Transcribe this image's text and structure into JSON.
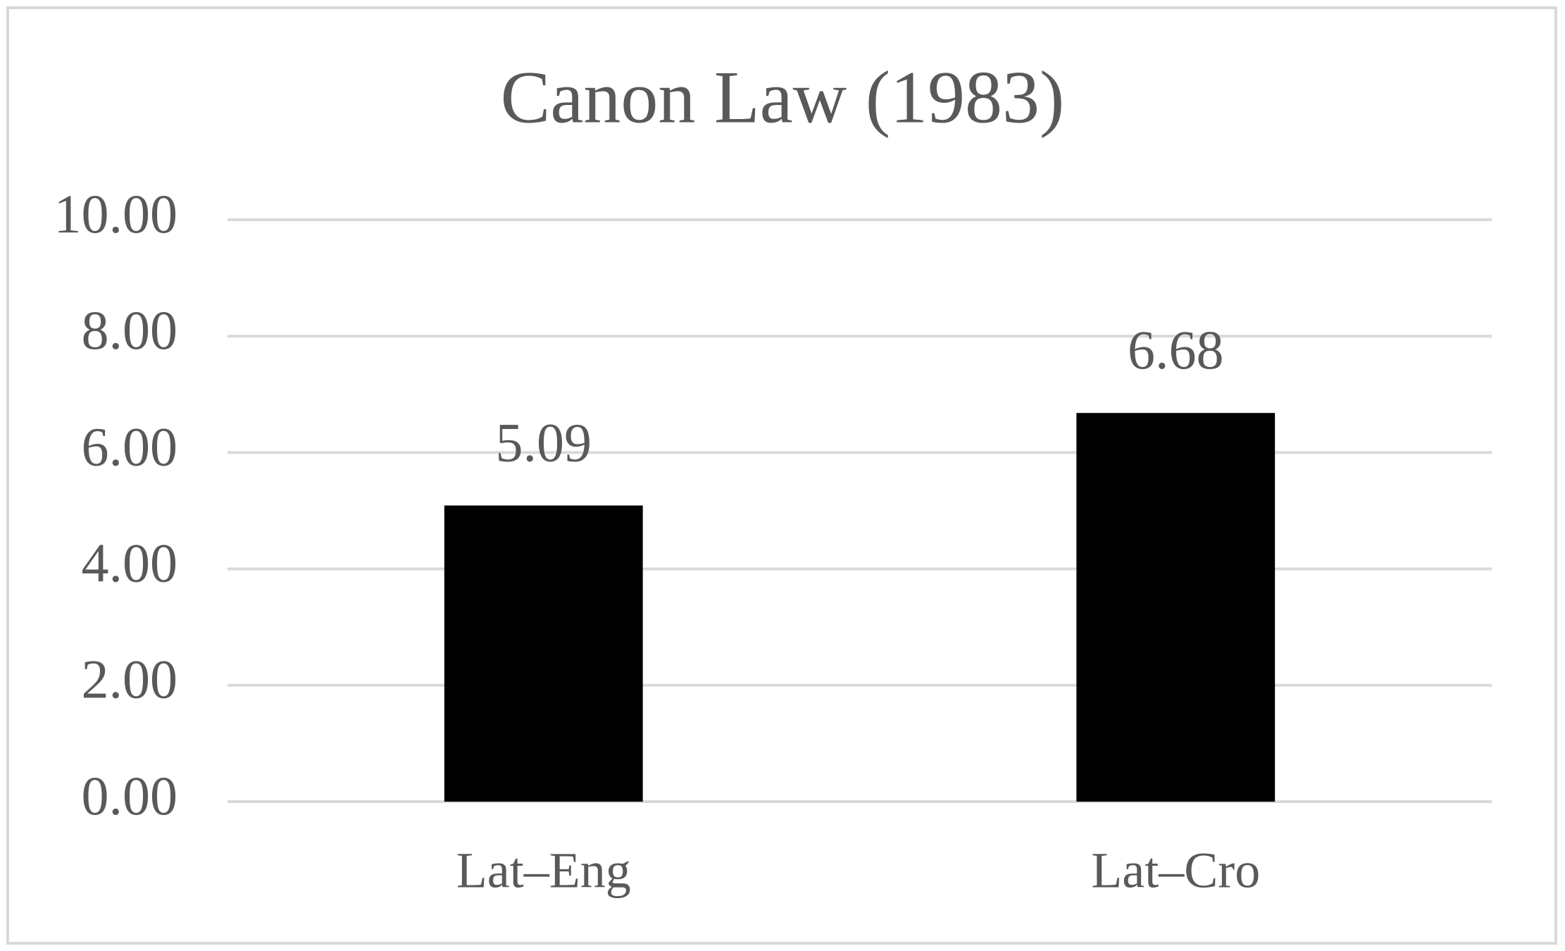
{
  "chart_data": {
    "type": "bar",
    "title": "Canon Law (1983)",
    "categories": [
      "Lat–Eng",
      "Lat–Cro"
    ],
    "values": [
      5.09,
      6.68
    ],
    "color": "#000000",
    "ylim": [
      0,
      10
    ],
    "yticks": [
      {
        "value": 0,
        "label": "0.00"
      },
      {
        "value": 2,
        "label": "2.00"
      },
      {
        "value": 4,
        "label": "4.00"
      },
      {
        "value": 6,
        "label": "6.00"
      },
      {
        "value": 8,
        "label": "8.00"
      },
      {
        "value": 10,
        "label": "10.00"
      }
    ],
    "grid": true
  }
}
